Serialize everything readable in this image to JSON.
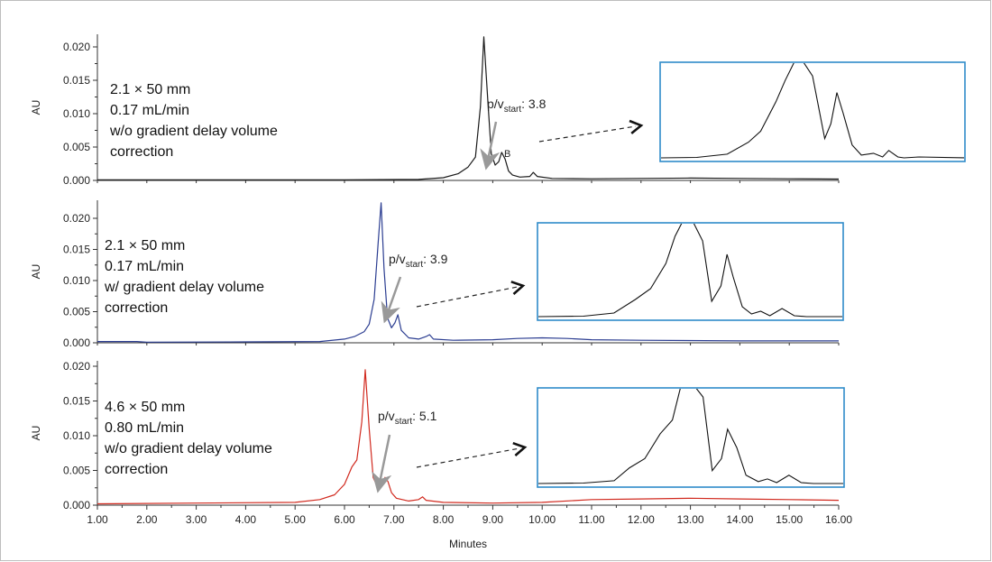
{
  "chart_data": {
    "type": "line",
    "x_axis": {
      "label": "Minutes",
      "range": [
        1.0,
        16.0
      ],
      "ticks": [
        "1.00",
        "2.00",
        "3.00",
        "4.00",
        "5.00",
        "6.00",
        "7.00",
        "8.00",
        "9.00",
        "10.00",
        "11.00",
        "12.00",
        "13.00",
        "14.00",
        "15.00",
        "16.00"
      ]
    },
    "panels": [
      {
        "ylabel": "AU",
        "ylim": [
          0.0,
          0.0225
        ],
        "yticks": [
          "0.000",
          "0.005",
          "0.010",
          "0.015",
          "0.020"
        ],
        "ytick_values": [
          0.0,
          0.005,
          0.01,
          0.015,
          0.02
        ],
        "color": "#1a1a1a",
        "conditions": [
          "2.1 × 50 mm",
          "0.17 mL/min",
          "w/o gradient delay volume",
          "correction"
        ],
        "ratio_label": {
          "prefix": "p/v",
          "sub": "start",
          "suffix": ": 3.8"
        },
        "peak_label": "B",
        "series": {
          "x": [
            1.0,
            4.0,
            6.0,
            7.5,
            8.0,
            8.3,
            8.5,
            8.65,
            8.75,
            8.82,
            8.9,
            8.97,
            9.05,
            9.12,
            9.18,
            9.25,
            9.32,
            9.4,
            9.55,
            9.75,
            9.82,
            9.9,
            10.2,
            11.0,
            12.0,
            13.0,
            14.0,
            15.0,
            16.0
          ],
          "y": [
            0.0001,
            0.0001,
            0.0001,
            0.00015,
            0.0004,
            0.001,
            0.002,
            0.0035,
            0.011,
            0.0215,
            0.012,
            0.004,
            0.0023,
            0.0028,
            0.0042,
            0.0032,
            0.0014,
            0.0008,
            0.0005,
            0.0006,
            0.0012,
            0.0006,
            0.0003,
            0.00025,
            0.0003,
            0.00035,
            0.0003,
            0.00025,
            0.0002
          ]
        },
        "inset": {
          "x": [
            0.0,
            0.12,
            0.22,
            0.29,
            0.33,
            0.38,
            0.41,
            0.44,
            0.46,
            0.5,
            0.54,
            0.56,
            0.58,
            0.6,
            0.63,
            0.66,
            0.7,
            0.73,
            0.75,
            0.78,
            0.8,
            0.85,
            1.0
          ],
          "y": [
            0.01,
            0.015,
            0.05,
            0.18,
            0.3,
            0.62,
            0.85,
            1.05,
            1.1,
            0.9,
            0.22,
            0.38,
            0.72,
            0.5,
            0.15,
            0.04,
            0.06,
            0.02,
            0.09,
            0.02,
            0.01,
            0.02,
            0.01
          ]
        }
      },
      {
        "ylabel": "AU",
        "ylim": [
          0.0,
          0.0225
        ],
        "yticks": [
          "0.000",
          "0.005",
          "0.010",
          "0.015",
          "0.020"
        ],
        "ytick_values": [
          0.0,
          0.005,
          0.01,
          0.015,
          0.02
        ],
        "color": "#2b3d91",
        "conditions": [
          "2.1 × 50 mm",
          "0.17 mL/min",
          "w/ gradient delay volume",
          "correction"
        ],
        "ratio_label": {
          "prefix": "p/v",
          "sub": "start",
          "suffix": ": 3.9"
        },
        "series": {
          "x": [
            1.0,
            1.8,
            2.0,
            4.0,
            5.5,
            6.0,
            6.2,
            6.4,
            6.5,
            6.6,
            6.68,
            6.74,
            6.8,
            6.87,
            6.95,
            7.02,
            7.08,
            7.15,
            7.3,
            7.5,
            7.65,
            7.72,
            7.8,
            8.2,
            9.0,
            9.5,
            10.0,
            10.5,
            11.0,
            12.0,
            14.0,
            16.0
          ],
          "y": [
            0.0002,
            0.0002,
            0.0001,
            0.00015,
            0.0002,
            0.0006,
            0.001,
            0.0018,
            0.003,
            0.007,
            0.016,
            0.0225,
            0.012,
            0.004,
            0.0024,
            0.0032,
            0.0045,
            0.002,
            0.0008,
            0.0006,
            0.001,
            0.0013,
            0.0006,
            0.0004,
            0.0005,
            0.0007,
            0.0008,
            0.0007,
            0.0005,
            0.0004,
            0.0003,
            0.0003
          ]
        },
        "inset": {
          "x": [
            0.0,
            0.15,
            0.25,
            0.32,
            0.37,
            0.42,
            0.45,
            0.48,
            0.5,
            0.54,
            0.57,
            0.6,
            0.62,
            0.64,
            0.67,
            0.7,
            0.73,
            0.76,
            0.8,
            0.84,
            0.88,
            1.0
          ],
          "y": [
            0.01,
            0.015,
            0.05,
            0.2,
            0.32,
            0.6,
            0.9,
            1.1,
            1.12,
            0.85,
            0.18,
            0.35,
            0.7,
            0.45,
            0.12,
            0.04,
            0.07,
            0.02,
            0.1,
            0.02,
            0.01,
            0.01
          ]
        }
      },
      {
        "ylabel": "AU",
        "ylim": [
          0.0,
          0.0205
        ],
        "yticks": [
          "0.000",
          "0.005",
          "0.010",
          "0.015",
          "0.020"
        ],
        "ytick_values": [
          0.0,
          0.005,
          0.01,
          0.015,
          0.02
        ],
        "color": "#d12a1f",
        "conditions": [
          "4.6 × 50 mm",
          "0.80 mL/min",
          "w/o gradient delay volume",
          "correction"
        ],
        "ratio_label": {
          "prefix": "p/v",
          "sub": "start",
          "suffix": ": 5.1"
        },
        "series": {
          "x": [
            1.0,
            3.0,
            5.0,
            5.5,
            5.8,
            6.0,
            6.15,
            6.25,
            6.35,
            6.42,
            6.5,
            6.58,
            6.68,
            6.75,
            6.82,
            6.88,
            6.95,
            7.05,
            7.3,
            7.5,
            7.58,
            7.65,
            8.0,
            9.0,
            10.0,
            11.0,
            12.0,
            13.0,
            14.0,
            15.0,
            16.0
          ],
          "y": [
            0.0002,
            0.0003,
            0.0004,
            0.0008,
            0.0015,
            0.003,
            0.0055,
            0.0065,
            0.012,
            0.0195,
            0.011,
            0.004,
            0.0024,
            0.0028,
            0.004,
            0.0034,
            0.0018,
            0.001,
            0.0006,
            0.0008,
            0.0012,
            0.0007,
            0.0004,
            0.0003,
            0.0004,
            0.0008,
            0.0009,
            0.001,
            0.0009,
            0.0008,
            0.0007
          ]
        },
        "inset": {
          "x": [
            0.0,
            0.15,
            0.25,
            0.3,
            0.35,
            0.4,
            0.44,
            0.47,
            0.5,
            0.54,
            0.57,
            0.6,
            0.62,
            0.65,
            0.68,
            0.72,
            0.75,
            0.78,
            0.82,
            0.86,
            0.9,
            1.0
          ],
          "y": [
            0.01,
            0.015,
            0.04,
            0.18,
            0.28,
            0.55,
            0.7,
            1.1,
            1.12,
            0.95,
            0.15,
            0.28,
            0.6,
            0.4,
            0.1,
            0.03,
            0.06,
            0.02,
            0.1,
            0.02,
            0.01,
            0.01
          ]
        }
      }
    ]
  },
  "colors": {
    "inset_border": "#2e8bc9",
    "arrow_gray": "#999999",
    "axis": "#333333",
    "inset_trace": "#111111"
  }
}
